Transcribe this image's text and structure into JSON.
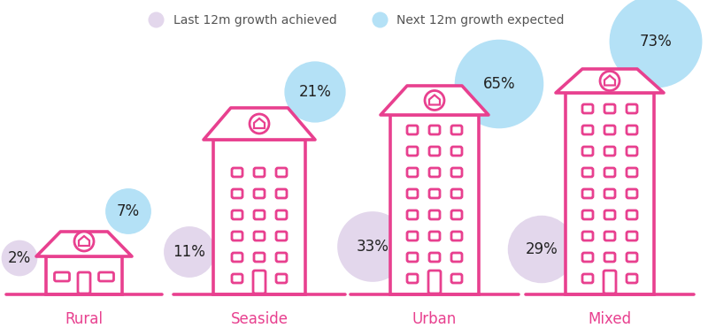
{
  "chart_data": {
    "type": "bubble",
    "categories": [
      "Rural",
      "Seaside",
      "Urban",
      "Mixed"
    ],
    "series": [
      {
        "name": "Last 12m growth achieved",
        "color": "#e3d7ec",
        "values": [
          2,
          11,
          33,
          29
        ],
        "value_labels": [
          "2%",
          "11%",
          "33%",
          "29%"
        ]
      },
      {
        "name": "Next 12m growth expected",
        "color": "#b4e1f6",
        "values": [
          7,
          21,
          65,
          73
        ],
        "value_labels": [
          "7%",
          "21%",
          "65%",
          "73%"
        ]
      }
    ],
    "data_labels": true,
    "legend": "upper center"
  }
}
